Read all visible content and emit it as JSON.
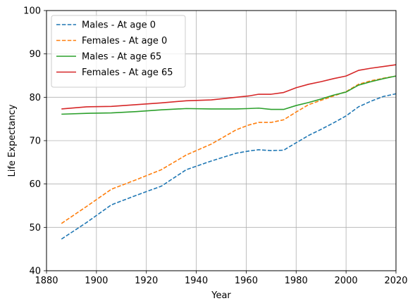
{
  "chart_data": {
    "type": "line",
    "title": "",
    "xlabel": "Year",
    "ylabel": "Life Expectancy",
    "xlim": [
      1880,
      2020
    ],
    "ylim": [
      40,
      100
    ],
    "xticks": [
      1880,
      1900,
      1920,
      1940,
      1960,
      1980,
      2000,
      2020
    ],
    "yticks": [
      40,
      50,
      60,
      70,
      80,
      90,
      100
    ],
    "grid": true,
    "legend_position": "top-left",
    "series": [
      {
        "name": "Males - At age 0",
        "color": "#1f77b4",
        "dash": "dashed",
        "x": [
          1886,
          1896,
          1906,
          1916,
          1926,
          1936,
          1946,
          1956,
          1961,
          1965,
          1970,
          1975,
          1980,
          1985,
          1990,
          1995,
          2000,
          2005,
          2010,
          2015,
          2020
        ],
        "y": [
          47.3,
          51.1,
          55.2,
          57.4,
          59.5,
          63.3,
          65.3,
          67.1,
          67.6,
          67.9,
          67.7,
          67.8,
          69.5,
          71.2,
          72.6,
          74.1,
          75.7,
          77.8,
          79.1,
          80.2,
          80.8
        ]
      },
      {
        "name": "Females - At age 0",
        "color": "#ff7f0e",
        "dash": "dashed",
        "x": [
          1886,
          1896,
          1906,
          1916,
          1926,
          1936,
          1946,
          1956,
          1961,
          1965,
          1970,
          1975,
          1980,
          1985,
          1990,
          1995,
          2000,
          2005,
          2010,
          2015,
          2020
        ],
        "y": [
          50.9,
          54.8,
          58.8,
          61.0,
          63.3,
          66.7,
          69.2,
          72.5,
          73.6,
          74.2,
          74.2,
          74.8,
          76.6,
          78.3,
          79.3,
          80.3,
          81.3,
          83.0,
          83.8,
          84.4,
          84.9
        ]
      },
      {
        "name": "Males - At age 65",
        "color": "#2ca02c",
        "dash": "solid",
        "x": [
          1886,
          1896,
          1906,
          1916,
          1926,
          1936,
          1946,
          1956,
          1961,
          1965,
          1970,
          1975,
          1980,
          1985,
          1990,
          1995,
          2000,
          2005,
          2010,
          2015,
          2020
        ],
        "y": [
          76.1,
          76.3,
          76.4,
          76.7,
          77.1,
          77.4,
          77.3,
          77.3,
          77.4,
          77.5,
          77.2,
          77.2,
          78.1,
          78.8,
          79.6,
          80.5,
          81.2,
          82.8,
          83.6,
          84.3,
          84.9
        ]
      },
      {
        "name": "Females - At age 65",
        "color": "#d62728",
        "dash": "solid",
        "x": [
          1886,
          1896,
          1906,
          1916,
          1926,
          1936,
          1946,
          1956,
          1961,
          1965,
          1970,
          1975,
          1980,
          1985,
          1990,
          1995,
          2000,
          2005,
          2010,
          2015,
          2020
        ],
        "y": [
          77.3,
          77.8,
          77.9,
          78.3,
          78.7,
          79.2,
          79.4,
          80.0,
          80.3,
          80.7,
          80.7,
          81.1,
          82.2,
          83.0,
          83.6,
          84.3,
          84.9,
          86.2,
          86.7,
          87.1,
          87.5
        ]
      }
    ]
  }
}
